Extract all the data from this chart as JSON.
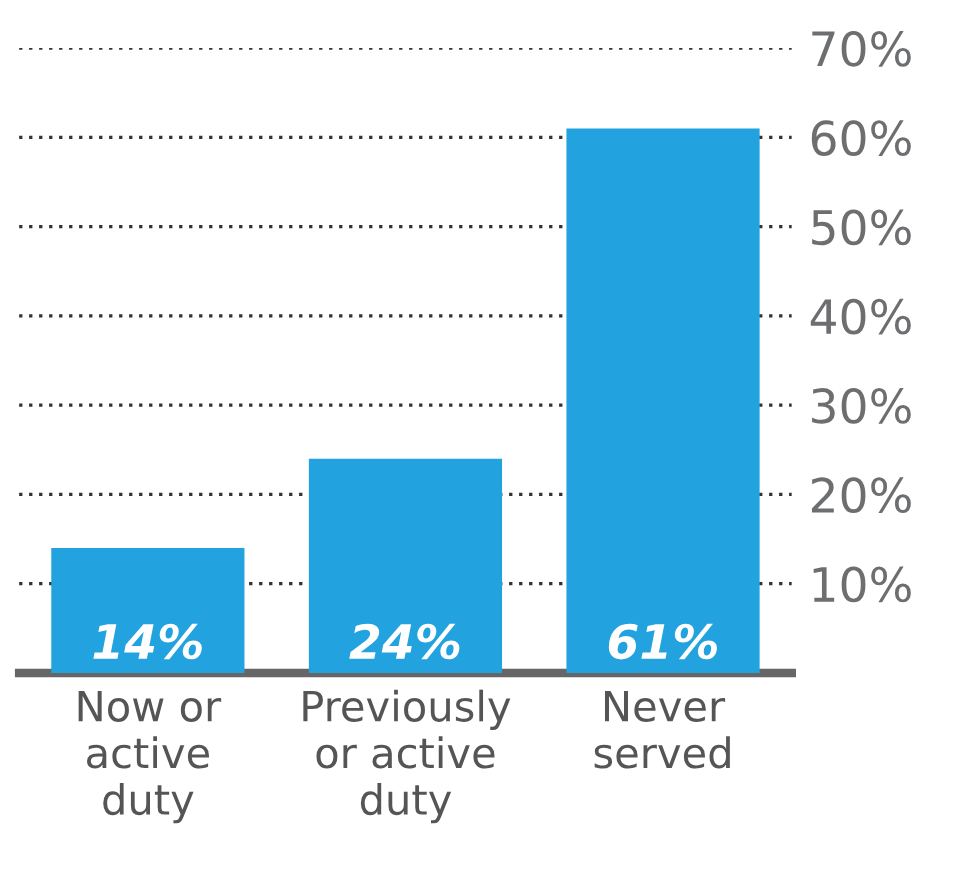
{
  "chart_data": {
    "type": "bar",
    "categories": [
      "Now or\nactive\nduty",
      "Previously\nor active\nduty",
      "Never\nserved"
    ],
    "values": [
      14,
      24,
      61
    ],
    "color": "#22a3e0",
    "value_labels": [
      "14%",
      "24%",
      "61%"
    ],
    "ylim": [
      0,
      70
    ],
    "yticks": [
      {
        "value": 10,
        "label": "10%"
      },
      {
        "value": 20,
        "label": "20%"
      },
      {
        "value": 30,
        "label": "30%"
      },
      {
        "value": 40,
        "label": "40%"
      },
      {
        "value": 50,
        "label": "50%"
      },
      {
        "value": 60,
        "label": "60%"
      },
      {
        "value": 70,
        "label": "70%"
      }
    ],
    "grid": "y"
  }
}
